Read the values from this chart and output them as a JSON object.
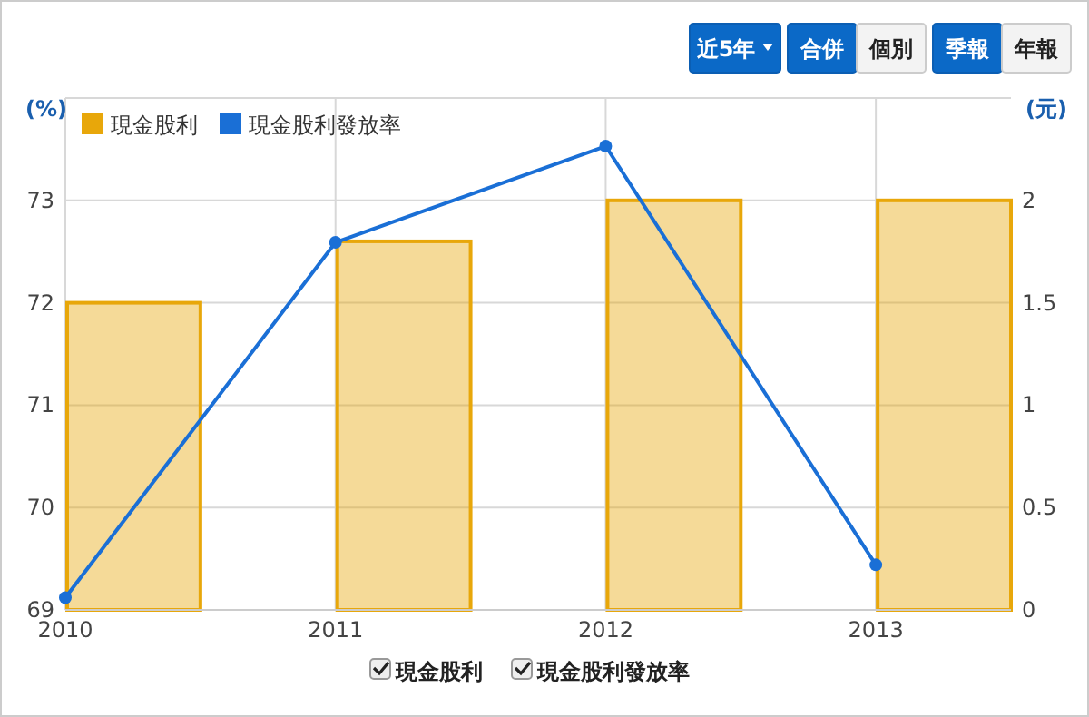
{
  "chart_data": {
    "type": "bar",
    "ylabel": "(%)",
    "y2label": "(元)",
    "x": [
      2010,
      2011,
      2012,
      2013
    ],
    "xlim": [
      2010,
      2013.5
    ],
    "xticks": [
      2010,
      2011,
      2012,
      2013
    ],
    "ylim": [
      69,
      74
    ],
    "yticks": [
      69,
      70,
      71,
      72,
      73,
      {
        "value": 74,
        "label": null
      }
    ],
    "y2lim": [
      0,
      2.5
    ],
    "y2ticks": [
      0,
      0.5,
      1,
      1.5,
      2
    ],
    "series": [
      {
        "name": "現金股利",
        "axis": "y2",
        "color": "#e8a70a",
        "x": [
          2010.25,
          2011.25,
          2012.25,
          2013.25
        ],
        "values": [
          1.5,
          1.8,
          2,
          2
        ]
      },
      {
        "name": "現金股利發放率",
        "type": "line",
        "axis": "y",
        "color": "#1a6fd6",
        "marker": "circle",
        "values": [
          69.12,
          72.59,
          73.53,
          69.44
        ]
      }
    ],
    "grid": true,
    "legend": "top left",
    "annotations": [
      "近5年",
      "合併",
      "個別",
      "季報",
      "年報"
    ]
  }
}
